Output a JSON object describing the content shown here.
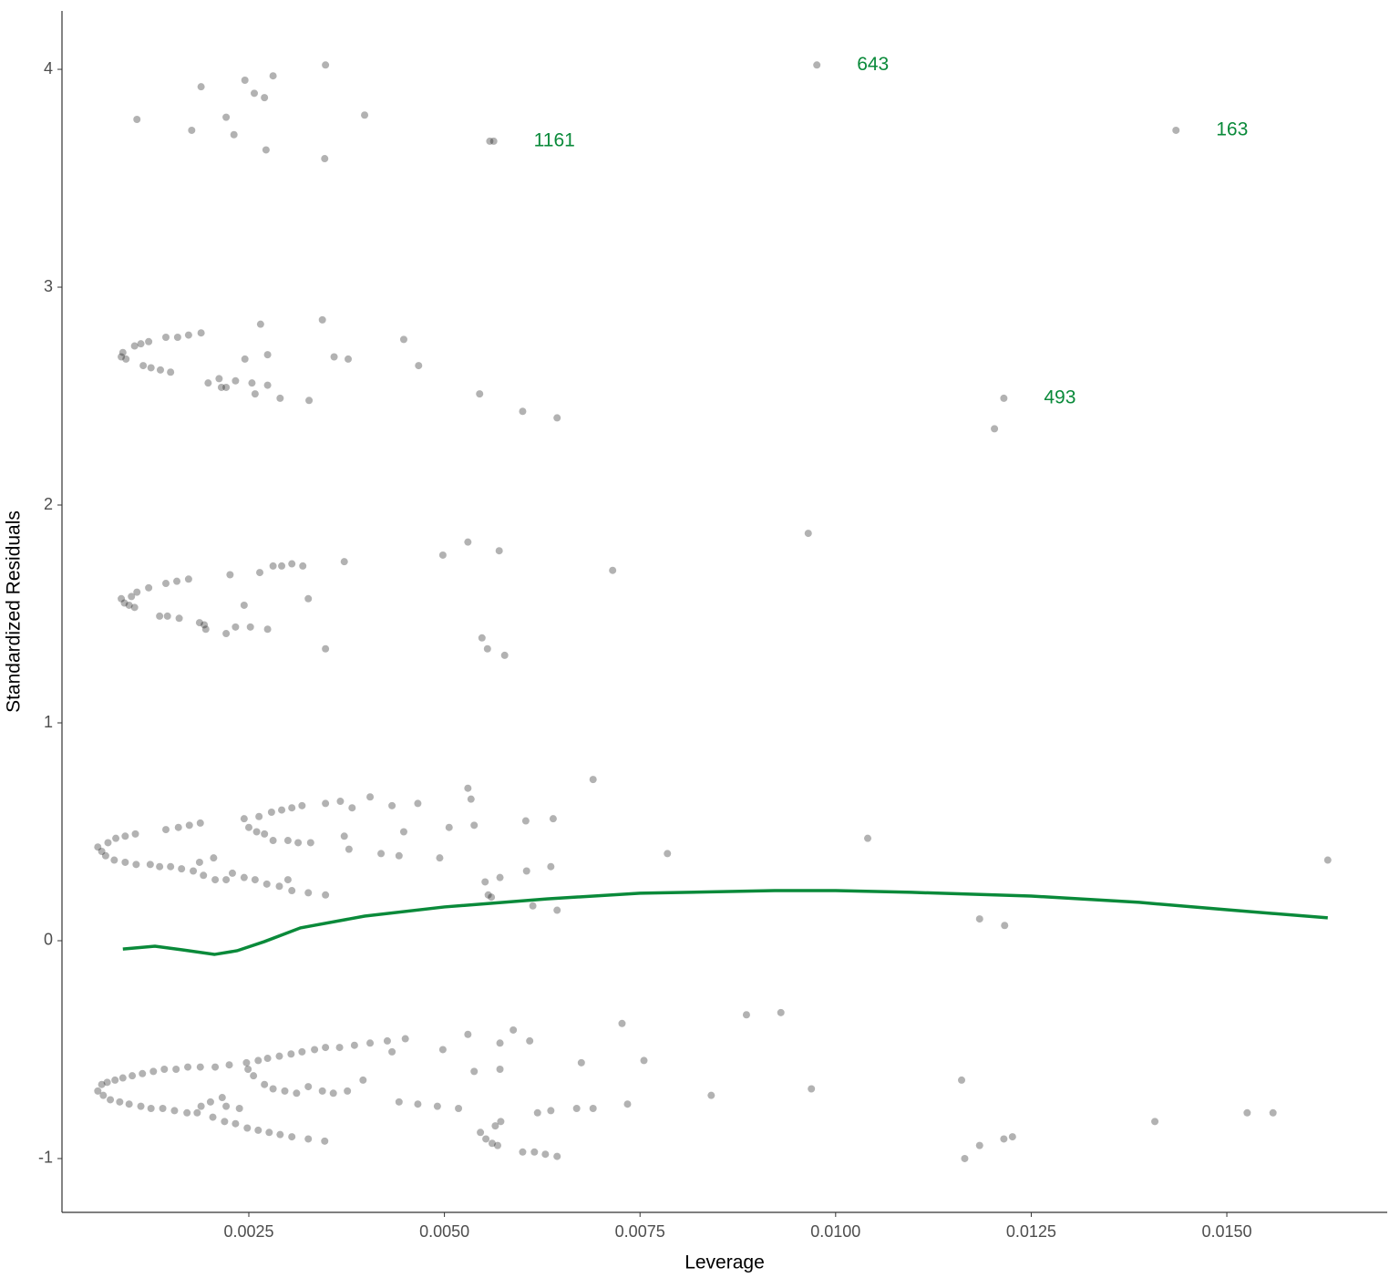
{
  "chart_data": {
    "type": "scatter",
    "x_label": "Leverage",
    "y_label": "Standardized Residuals",
    "xlim": [
      0.000112,
      0.01705
    ],
    "ylim": [
      -1.247,
      4.268
    ],
    "xticks": [
      {
        "value": 0.0025,
        "label": "0.0025"
      },
      {
        "value": 0.005,
        "label": "0.0050"
      },
      {
        "value": 0.0075,
        "label": "0.0075"
      },
      {
        "value": 0.01,
        "label": "0.0100"
      },
      {
        "value": 0.0125,
        "label": "0.0125"
      },
      {
        "value": 0.015,
        "label": "0.0150"
      }
    ],
    "yticks": [
      -1,
      0,
      1,
      2,
      3,
      4
    ],
    "grid": false,
    "points": {
      "color": "#000000",
      "opacity": 0.3,
      "x": [
        0.00107,
        0.00189,
        0.00177,
        0.00221,
        0.00231,
        0.00245,
        0.00257,
        0.0027,
        0.00281,
        0.00272,
        0.00348,
        0.00347,
        0.00398,
        0.00558,
        0.00563,
        0.00976,
        0.01435,
        0.00089,
        0.00087,
        0.00093,
        0.00104,
        0.00112,
        0.00122,
        0.00115,
        0.00125,
        0.00137,
        0.0015,
        0.00144,
        0.00159,
        0.00173,
        0.00189,
        0.00198,
        0.00212,
        0.00215,
        0.00221,
        0.00233,
        0.00245,
        0.00254,
        0.00258,
        0.00265,
        0.00274,
        0.00274,
        0.0029,
        0.00327,
        0.00344,
        0.00359,
        0.00377,
        0.00448,
        0.00467,
        0.00545,
        0.006,
        0.00644,
        0.01203,
        0.01215,
        0.00087,
        0.00091,
        0.00097,
        0.00104,
        0.001,
        0.00107,
        0.00122,
        0.00136,
        0.00146,
        0.00144,
        0.00161,
        0.00158,
        0.00173,
        0.00187,
        0.00195,
        0.00193,
        0.00221,
        0.00226,
        0.00233,
        0.00244,
        0.00252,
        0.00264,
        0.00274,
        0.00281,
        0.00292,
        0.00305,
        0.00319,
        0.00326,
        0.00348,
        0.00372,
        0.00498,
        0.0053,
        0.00548,
        0.00555,
        0.0057,
        0.00577,
        0.00715,
        0.00965,
        0.00057,
        0.00062,
        0.0007,
        0.0008,
        0.00092,
        0.00105,
        0.00067,
        0.00078,
        0.00092,
        0.00106,
        0.00124,
        0.00136,
        0.0015,
        0.00164,
        0.00179,
        0.00192,
        0.00207,
        0.00221,
        0.00144,
        0.0016,
        0.00174,
        0.00188,
        0.00205,
        0.00187,
        0.00229,
        0.00244,
        0.00258,
        0.00273,
        0.00289,
        0.00305,
        0.00244,
        0.0025,
        0.0026,
        0.0027,
        0.00281,
        0.00263,
        0.00279,
        0.00292,
        0.00305,
        0.00318,
        0.003,
        0.00313,
        0.00329,
        0.003,
        0.00326,
        0.00348,
        0.00348,
        0.00367,
        0.00382,
        0.00372,
        0.00378,
        0.00405,
        0.00419,
        0.00433,
        0.00442,
        0.00448,
        0.00466,
        0.00494,
        0.00506,
        0.0053,
        0.00534,
        0.00538,
        0.00552,
        0.00556,
        0.0056,
        0.00571,
        0.00604,
        0.00605,
        0.00613,
        0.00636,
        0.00639,
        0.00644,
        0.0069,
        0.00785,
        0.01041,
        0.01184,
        0.01216,
        0.01629,
        0.00057,
        0.00062,
        0.00069,
        0.00079,
        0.00089,
        0.00101,
        0.00114,
        0.00128,
        0.00142,
        0.00157,
        0.00172,
        0.00188,
        0.00064,
        0.00073,
        0.00085,
        0.00097,
        0.00112,
        0.00125,
        0.0014,
        0.00155,
        0.00171,
        0.00184,
        0.00189,
        0.00201,
        0.00216,
        0.00204,
        0.00219,
        0.00233,
        0.00248,
        0.00262,
        0.00276,
        0.0029,
        0.00305,
        0.00207,
        0.00225,
        0.00249,
        0.00256,
        0.0027,
        0.00281,
        0.00296,
        0.00247,
        0.00262,
        0.00274,
        0.00289,
        0.00304,
        0.00318,
        0.00334,
        0.00348,
        0.00366,
        0.00385,
        0.00405,
        0.00427,
        0.0045,
        0.00433,
        0.00311,
        0.00326,
        0.00344,
        0.00358,
        0.00376,
        0.00396,
        0.00326,
        0.00347,
        0.00221,
        0.00238,
        0.00442,
        0.00466,
        0.00491,
        0.00518,
        0.00498,
        0.0053,
        0.00538,
        0.00546,
        0.00553,
        0.00561,
        0.00568,
        0.00565,
        0.00572,
        0.00571,
        0.00571,
        0.00588,
        0.006,
        0.00615,
        0.00629,
        0.00644,
        0.00609,
        0.00619,
        0.00636,
        0.00669,
        0.00675,
        0.0069,
        0.00727,
        0.00734,
        0.00755,
        0.00841,
        0.00886,
        0.0093,
        0.00969,
        0.01161,
        0.01165,
        0.01184,
        0.01215,
        0.01226,
        0.01408,
        0.01526,
        0.01559
      ],
      "y": [
        3.77,
        3.92,
        3.72,
        3.78,
        3.7,
        3.95,
        3.89,
        3.87,
        3.97,
        3.63,
        4.02,
        3.59,
        3.79,
        3.67,
        3.67,
        4.02,
        3.72,
        2.7,
        2.68,
        2.67,
        2.73,
        2.74,
        2.75,
        2.64,
        2.63,
        2.62,
        2.61,
        2.77,
        2.77,
        2.78,
        2.79,
        2.56,
        2.58,
        2.54,
        2.54,
        2.57,
        2.67,
        2.56,
        2.51,
        2.83,
        2.69,
        2.55,
        2.49,
        2.48,
        2.85,
        2.68,
        2.67,
        2.76,
        2.64,
        2.51,
        2.43,
        2.4,
        2.35,
        2.49,
        1.57,
        1.55,
        1.54,
        1.53,
        1.58,
        1.6,
        1.62,
        1.49,
        1.49,
        1.64,
        1.48,
        1.65,
        1.66,
        1.46,
        1.43,
        1.45,
        1.41,
        1.68,
        1.44,
        1.54,
        1.44,
        1.69,
        1.43,
        1.72,
        1.72,
        1.73,
        1.72,
        1.57,
        1.34,
        1.74,
        1.77,
        1.83,
        1.39,
        1.34,
        1.79,
        1.31,
        1.7,
        1.87,
        0.43,
        0.41,
        0.45,
        0.47,
        0.48,
        0.49,
        0.39,
        0.37,
        0.36,
        0.35,
        0.35,
        0.34,
        0.34,
        0.33,
        0.32,
        0.3,
        0.28,
        0.28,
        0.51,
        0.52,
        0.53,
        0.54,
        0.38,
        0.36,
        0.31,
        0.29,
        0.28,
        0.26,
        0.25,
        0.23,
        0.56,
        0.52,
        0.5,
        0.49,
        0.46,
        0.57,
        0.59,
        0.6,
        0.61,
        0.62,
        0.46,
        0.45,
        0.45,
        0.28,
        0.22,
        0.21,
        0.63,
        0.64,
        0.61,
        0.48,
        0.42,
        0.66,
        0.4,
        0.62,
        0.39,
        0.5,
        0.63,
        0.38,
        0.52,
        0.7,
        0.65,
        0.53,
        0.27,
        0.21,
        0.2,
        0.29,
        0.55,
        0.32,
        0.16,
        0.34,
        0.56,
        0.14,
        0.74,
        0.4,
        0.47,
        0.1,
        0.07,
        0.37,
        -0.69,
        -0.66,
        -0.65,
        -0.64,
        -0.63,
        -0.62,
        -0.61,
        -0.6,
        -0.59,
        -0.59,
        -0.58,
        -0.58,
        -0.71,
        -0.73,
        -0.74,
        -0.75,
        -0.76,
        -0.77,
        -0.77,
        -0.78,
        -0.79,
        -0.79,
        -0.76,
        -0.74,
        -0.72,
        -0.81,
        -0.83,
        -0.84,
        -0.86,
        -0.87,
        -0.88,
        -0.89,
        -0.9,
        -0.58,
        -0.57,
        -0.59,
        -0.62,
        -0.66,
        -0.68,
        -0.69,
        -0.56,
        -0.55,
        -0.54,
        -0.53,
        -0.52,
        -0.51,
        -0.5,
        -0.49,
        -0.49,
        -0.48,
        -0.47,
        -0.46,
        -0.45,
        -0.51,
        -0.7,
        -0.67,
        -0.69,
        -0.7,
        -0.69,
        -0.64,
        -0.91,
        -0.92,
        -0.76,
        -0.77,
        -0.74,
        -0.75,
        -0.76,
        -0.77,
        -0.5,
        -0.43,
        -0.6,
        -0.88,
        -0.91,
        -0.93,
        -0.94,
        -0.85,
        -0.83,
        -0.47,
        -0.59,
        -0.41,
        -0.97,
        -0.97,
        -0.98,
        -0.99,
        -0.46,
        -0.79,
        -0.78,
        -0.77,
        -0.56,
        -0.77,
        -0.38,
        -0.75,
        -0.55,
        -0.71,
        -0.34,
        -0.33,
        -0.68,
        -0.64,
        -1.0,
        -0.94,
        -0.91,
        -0.9,
        -0.83,
        -0.79,
        -0.79
      ]
    },
    "smooth": {
      "color": "#0a8a3a",
      "x": [
        0.00089,
        0.0013,
        0.00165,
        0.00206,
        0.00235,
        0.0027,
        0.00316,
        0.00398,
        0.005,
        0.00631,
        0.0075,
        0.00922,
        0.01,
        0.01097,
        0.0125,
        0.01388,
        0.015,
        0.01629
      ],
      "y": [
        -0.038,
        -0.025,
        -0.042,
        -0.063,
        -0.046,
        -0.004,
        0.059,
        0.113,
        0.155,
        0.192,
        0.218,
        0.23,
        0.23,
        0.222,
        0.205,
        0.176,
        0.142,
        0.105
      ]
    },
    "annotations": {
      "color": "#0a8a3a",
      "items": [
        {
          "text": "643",
          "x": 0.00976,
          "y": 4.02
        },
        {
          "text": "1161",
          "x": 0.00563,
          "y": 3.67
        },
        {
          "text": "163",
          "x": 0.01435,
          "y": 3.72
        },
        {
          "text": "493",
          "x": 0.01215,
          "y": 2.49
        }
      ]
    }
  }
}
